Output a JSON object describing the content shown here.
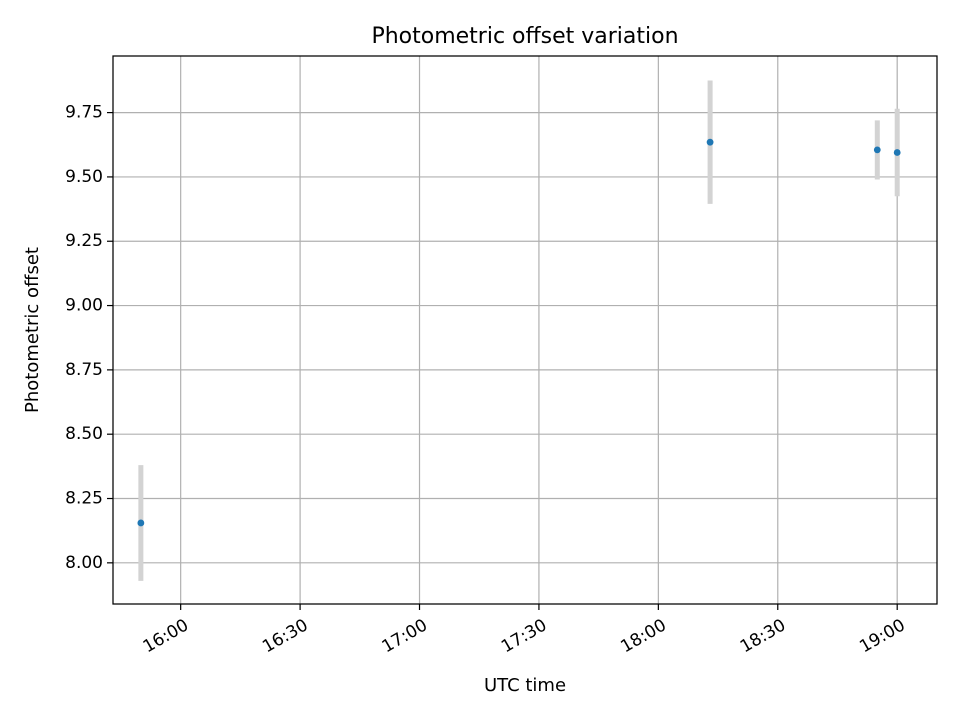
{
  "chart_data": {
    "type": "scatter",
    "title": "Photometric offset variation",
    "xlabel": "UTC time",
    "ylabel": "Photometric offset",
    "x_ticks": [
      "16:00",
      "16:30",
      "17:00",
      "17:30",
      "18:00",
      "18:30",
      "19:00"
    ],
    "y_ticks": [
      "8.00",
      "8.25",
      "8.50",
      "8.75",
      "9.00",
      "9.25",
      "9.50",
      "9.75"
    ],
    "xlim": [
      "15:43",
      "19:10"
    ],
    "ylim": [
      7.84,
      9.97
    ],
    "grid": true,
    "points": [
      {
        "x": "15:50",
        "y": 8.155,
        "err": 0.225
      },
      {
        "x": "18:13",
        "y": 9.635,
        "err": 0.24
      },
      {
        "x": "18:55",
        "y": 9.605,
        "err": 0.115
      },
      {
        "x": "19:00",
        "y": 9.595,
        "err": 0.17
      }
    ],
    "colors": {
      "marker": "#1f77b4",
      "errorbar": "#d3d3d3",
      "grid": "#b0b0b0"
    }
  }
}
